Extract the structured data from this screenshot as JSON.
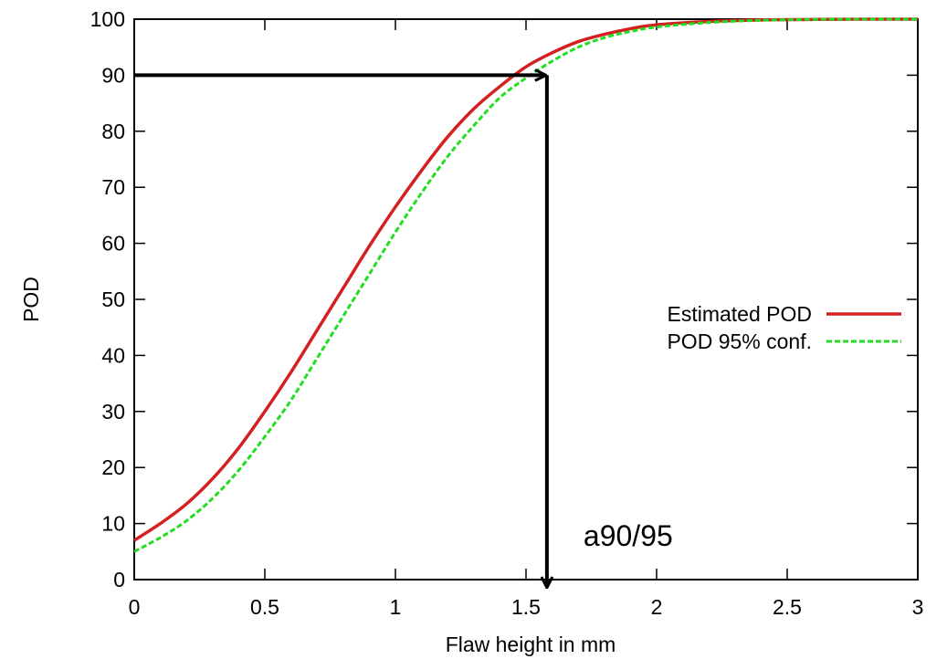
{
  "chart_data": {
    "type": "line",
    "title": "",
    "xlabel": "Flaw height in mm",
    "ylabel": "POD",
    "xlim": [
      0,
      3
    ],
    "ylim": [
      0,
      100
    ],
    "x_ticks": [
      "0",
      "0.5",
      "1",
      "1.5",
      "2",
      "2.5",
      "3"
    ],
    "y_ticks": [
      "0",
      "10",
      "20",
      "30",
      "40",
      "50",
      "60",
      "70",
      "80",
      "90",
      "100"
    ],
    "grid": false,
    "legend_position": "right",
    "series": [
      {
        "name": "Estimated POD",
        "color": "#d42020",
        "style": "solid",
        "x": [
          0,
          0.1,
          0.2,
          0.3,
          0.4,
          0.5,
          0.6,
          0.7,
          0.8,
          0.9,
          1.0,
          1.1,
          1.2,
          1.3,
          1.4,
          1.5,
          1.6,
          1.7,
          1.8,
          1.9,
          2.0,
          2.2,
          2.4,
          2.6,
          2.8,
          3.0
        ],
        "y": [
          7,
          10,
          13.5,
          18,
          23.5,
          30,
          37,
          44.5,
          52,
          59.5,
          66.5,
          73,
          79,
          84,
          88,
          91.5,
          94,
          96,
          97.3,
          98.3,
          99,
          99.6,
          99.85,
          99.95,
          100,
          100
        ]
      },
      {
        "name": "POD 95% conf.",
        "color": "#22dd22",
        "style": "dashed",
        "x": [
          0,
          0.1,
          0.2,
          0.3,
          0.4,
          0.5,
          0.6,
          0.7,
          0.8,
          0.9,
          1.0,
          1.1,
          1.2,
          1.3,
          1.4,
          1.5,
          1.6,
          1.7,
          1.8,
          1.9,
          2.0,
          2.2,
          2.4,
          2.6,
          2.8,
          3.0
        ],
        "y": [
          5,
          7.5,
          10.5,
          14.5,
          19.5,
          25.5,
          32,
          39.5,
          47,
          54.5,
          62,
          69,
          75.5,
          81,
          86,
          89.5,
          92.5,
          95,
          96.7,
          97.8,
          98.6,
          99.4,
          99.8,
          99.95,
          100,
          100
        ]
      }
    ],
    "annotations": {
      "label": "a90/95",
      "label_x": 1.72,
      "label_y": 8,
      "target_x": 1.58,
      "target_y": 90
    }
  }
}
